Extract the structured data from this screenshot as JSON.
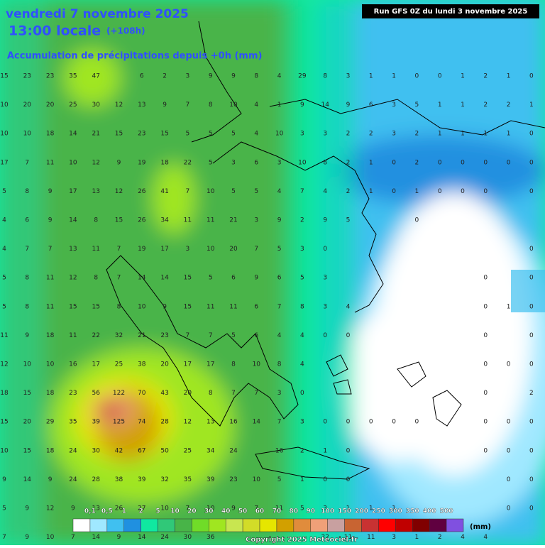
{
  "header": {
    "date": "vendredi 7 novembre 2025",
    "time": "13:00 locale",
    "lead": "(+108h)",
    "field": "Accumulation de précipitations depuis +0h (mm)",
    "run": "Run GFS 0Z du lundi 3 novembre 2025"
  },
  "grid": {
    "rows": [
      [
        15,
        23,
        23,
        35,
        47,
        null,
        6,
        2,
        3,
        9,
        9,
        8,
        4,
        29,
        8,
        3,
        1,
        1,
        0,
        0,
        1,
        2,
        1,
        0
      ],
      [
        10,
        20,
        20,
        25,
        30,
        12,
        13,
        9,
        7,
        8,
        10,
        4,
        1,
        9,
        14,
        9,
        6,
        3,
        5,
        1,
        1,
        2,
        2,
        1
      ],
      [
        10,
        10,
        18,
        14,
        21,
        15,
        23,
        15,
        5,
        5,
        5,
        4,
        10,
        3,
        3,
        2,
        2,
        3,
        2,
        1,
        1,
        1,
        1,
        0
      ],
      [
        17,
        7,
        11,
        10,
        12,
        9,
        19,
        18,
        22,
        5,
        3,
        6,
        3,
        10,
        8,
        2,
        1,
        0,
        2,
        0,
        0,
        0,
        0,
        0
      ],
      [
        5,
        8,
        9,
        17,
        13,
        12,
        26,
        41,
        7,
        10,
        5,
        5,
        4,
        7,
        4,
        2,
        1,
        0,
        1,
        0,
        0,
        0,
        null,
        0
      ],
      [
        4,
        6,
        9,
        14,
        8,
        15,
        26,
        34,
        11,
        11,
        21,
        3,
        9,
        2,
        9,
        5,
        null,
        null,
        0,
        null,
        null,
        null,
        null,
        null
      ],
      [
        4,
        7,
        7,
        13,
        11,
        7,
        19,
        17,
        3,
        10,
        20,
        7,
        5,
        3,
        0,
        null,
        null,
        null,
        null,
        null,
        null,
        null,
        null,
        0
      ],
      [
        5,
        8,
        11,
        12,
        8,
        7,
        14,
        14,
        15,
        5,
        6,
        9,
        6,
        5,
        3,
        null,
        null,
        null,
        null,
        null,
        null,
        0,
        null,
        0
      ],
      [
        5,
        8,
        11,
        15,
        15,
        8,
        10,
        9,
        15,
        11,
        11,
        6,
        7,
        8,
        3,
        4,
        null,
        null,
        null,
        null,
        null,
        0,
        1,
        0
      ],
      [
        11,
        9,
        18,
        11,
        22,
        32,
        21,
        23,
        7,
        7,
        5,
        6,
        4,
        4,
        0,
        0,
        null,
        null,
        null,
        null,
        null,
        0,
        null,
        0
      ],
      [
        12,
        10,
        10,
        16,
        17,
        25,
        38,
        20,
        17,
        17,
        8,
        10,
        8,
        4,
        null,
        null,
        null,
        null,
        null,
        null,
        null,
        0,
        0,
        0
      ],
      [
        18,
        15,
        18,
        23,
        56,
        122,
        70,
        43,
        20,
        8,
        7,
        7,
        3,
        0,
        null,
        null,
        null,
        null,
        null,
        null,
        null,
        0,
        null,
        2
      ],
      [
        15,
        20,
        29,
        35,
        39,
        125,
        74,
        28,
        12,
        13,
        16,
        14,
        7,
        3,
        0,
        0,
        0,
        0,
        0,
        null,
        null,
        0,
        0,
        0
      ],
      [
        10,
        15,
        18,
        24,
        30,
        42,
        67,
        50,
        25,
        34,
        24,
        null,
        16,
        2,
        1,
        0,
        null,
        null,
        null,
        null,
        null,
        0,
        0,
        0
      ],
      [
        9,
        14,
        9,
        24,
        28,
        38,
        39,
        32,
        35,
        39,
        23,
        10,
        5,
        1,
        0,
        0,
        null,
        null,
        null,
        null,
        null,
        null,
        0,
        0
      ],
      [
        5,
        9,
        12,
        9,
        13,
        26,
        27,
        10,
        7,
        10,
        9,
        7,
        11,
        5,
        3,
        1,
        1,
        1,
        null,
        null,
        null,
        null,
        0,
        0
      ],
      [
        7,
        9,
        10,
        7,
        14,
        9,
        14,
        24,
        30,
        36,
        null,
        null,
        null,
        null,
        22,
        11,
        11,
        3,
        1,
        2,
        4,
        4,
        null,
        null
      ]
    ]
  },
  "legend": {
    "labels": [
      "0,1",
      "0,5",
      "1",
      "2",
      "5",
      "10",
      "20",
      "30",
      "40",
      "50",
      "60",
      "70",
      "80",
      "90",
      "100",
      "150",
      "200",
      "250",
      "300",
      "350",
      "400",
      "500"
    ],
    "colors": [
      "#ffffff",
      "#a0e8ff",
      "#40c0f0",
      "#2090e0",
      "#10e8a0",
      "#30c878",
      "#48b448",
      "#70dc28",
      "#a0e620",
      "#c8e650",
      "#d2dc28",
      "#e6e600",
      "#d2a000",
      "#e08c3c",
      "#f0a078",
      "#c8a0a0",
      "#c86432",
      "#c83232",
      "#ff0000",
      "#c00000",
      "#800000",
      "#600040",
      "#8050e0"
    ],
    "unit": "(mm)"
  },
  "copyright": "Copyright 2025 Meteociel.fr"
}
